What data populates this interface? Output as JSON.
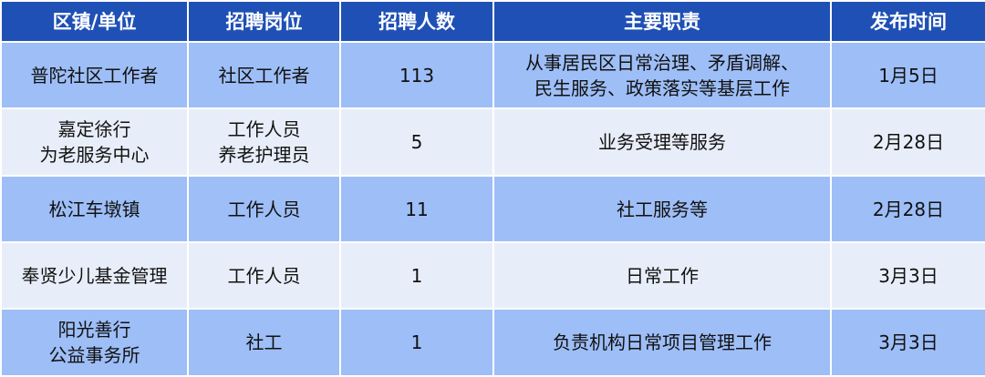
{
  "colors": {
    "header": "#1f50b5",
    "row_blue": "#9ebef7",
    "row_light": "#e8eef9"
  },
  "headers": [
    "区镇/单位",
    "招聘岗位",
    "招聘人数",
    "主要职责",
    "发布时间"
  ],
  "rows": [
    [
      "普陀社区工作者",
      "社区工作者",
      "113",
      "从事居民区日常治理、矛盾调解、\n民生服务、政策落实等基层工作",
      "1月5日"
    ],
    [
      "嘉定徐行\n为老服务中心",
      "工作人员\n养老护理员",
      "5",
      "业务受理等服务",
      "2月28日"
    ],
    [
      "松江车墩镇",
      "工作人员",
      "11",
      "社工服务等",
      "2月28日"
    ],
    [
      "奉贤少儿基金管理",
      "工作人员",
      "1",
      "日常工作",
      "3月3日"
    ],
    [
      "阳光善行\n公益事务所",
      "社工",
      "1",
      "负责机构日常项目管理工作",
      "3月3日"
    ]
  ]
}
